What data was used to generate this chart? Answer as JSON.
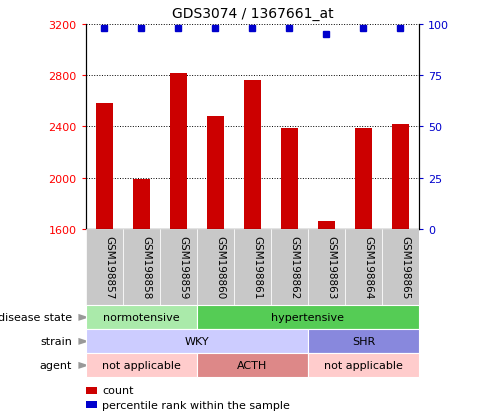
{
  "title": "GDS3074 / 1367661_at",
  "samples": [
    "GSM198857",
    "GSM198858",
    "GSM198859",
    "GSM198860",
    "GSM198861",
    "GSM198862",
    "GSM198863",
    "GSM198864",
    "GSM198865"
  ],
  "bar_values": [
    2580,
    1990,
    2820,
    2480,
    2760,
    2390,
    1660,
    2390,
    2420
  ],
  "percentile_values": [
    98,
    98,
    98,
    98,
    98,
    98,
    95,
    98,
    98
  ],
  "ylim_left": [
    1600,
    3200
  ],
  "ylim_right": [
    0,
    100
  ],
  "yticks_left": [
    1600,
    2000,
    2400,
    2800,
    3200
  ],
  "yticks_right": [
    0,
    25,
    50,
    75,
    100
  ],
  "bar_color": "#CC0000",
  "dot_color": "#0000CC",
  "tick_bg_color": "#C8C8C8",
  "disease_rows": [
    {
      "label": "disease state",
      "segments": [
        {
          "start": 0,
          "end": 3,
          "color": "#AAEAAA",
          "text": "normotensive"
        },
        {
          "start": 3,
          "end": 9,
          "color": "#55CC55",
          "text": "hypertensive"
        }
      ]
    },
    {
      "label": "strain",
      "segments": [
        {
          "start": 0,
          "end": 6,
          "color": "#CCCCFF",
          "text": "WKY"
        },
        {
          "start": 6,
          "end": 9,
          "color": "#8888DD",
          "text": "SHR"
        }
      ]
    },
    {
      "label": "agent",
      "segments": [
        {
          "start": 0,
          "end": 3,
          "color": "#FFCCCC",
          "text": "not applicable"
        },
        {
          "start": 3,
          "end": 6,
          "color": "#DD8888",
          "text": "ACTH"
        },
        {
          "start": 6,
          "end": 9,
          "color": "#FFCCCC",
          "text": "not applicable"
        }
      ]
    }
  ],
  "legend_items": [
    {
      "color": "#CC0000",
      "label": "count"
    },
    {
      "color": "#0000CC",
      "label": "percentile rank within the sample"
    }
  ]
}
